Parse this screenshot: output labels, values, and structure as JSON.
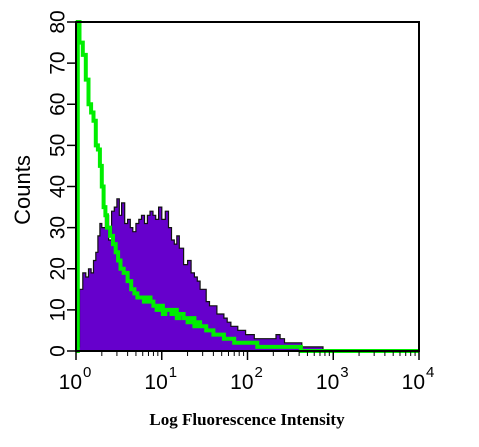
{
  "chart_data": {
    "type": "area",
    "xlabel": "Log Fluorescence Intensity",
    "ylabel": "Counts",
    "x_scale": "log",
    "xlim": [
      1,
      10000
    ],
    "ylim": [
      0,
      80
    ],
    "grid": false,
    "y_ticks": [
      "0",
      "10",
      "20",
      "30",
      "40",
      "50",
      "60",
      "70",
      "80"
    ],
    "x_ticks": [
      {
        "base": "10",
        "exp": "0",
        "value": 1
      },
      {
        "base": "10",
        "exp": "1",
        "value": 10
      },
      {
        "base": "10",
        "exp": "2",
        "value": 100
      },
      {
        "base": "10",
        "exp": "3",
        "value": 1000
      },
      {
        "base": "10",
        "exp": "4",
        "value": 10000
      }
    ],
    "series": [
      {
        "style": "filled",
        "color": "#6600cc",
        "x": [
          1.0,
          1.1,
          1.2,
          1.3,
          1.4,
          1.5,
          1.6,
          1.7,
          1.8,
          1.9,
          2.0,
          2.2,
          2.4,
          2.6,
          2.8,
          3.0,
          3.2,
          3.4,
          3.7,
          4.0,
          4.3,
          4.6,
          5.0,
          5.4,
          5.8,
          6.3,
          6.8,
          7.3,
          7.9,
          8.5,
          9.2,
          10,
          11,
          12,
          13,
          14,
          15,
          16,
          18,
          20,
          22,
          24,
          26,
          28,
          30,
          33,
          36,
          40,
          44,
          48,
          53,
          58,
          64,
          70,
          77,
          85,
          95,
          105,
          120,
          135,
          150,
          170,
          190,
          215,
          240,
          270,
          300,
          340,
          380,
          430,
          480,
          540,
          600,
          680,
          760,
          850,
          1000,
          1500,
          2500,
          10000
        ],
        "y": [
          1,
          15,
          19,
          18,
          20,
          19,
          22,
          24,
          28,
          31,
          30,
          33,
          27,
          34,
          35,
          37,
          33,
          36,
          31,
          32,
          30,
          29,
          31,
          32,
          33,
          31,
          33,
          34,
          33,
          32,
          35,
          32,
          34,
          30,
          27,
          26,
          28,
          25,
          21,
          22,
          19,
          18,
          17,
          15,
          15,
          12,
          11,
          11,
          9,
          9,
          8,
          7,
          6,
          6,
          5,
          5,
          4,
          4,
          3,
          3,
          3,
          3,
          3,
          4,
          3,
          2,
          2,
          2,
          2,
          1,
          1,
          1,
          1,
          1,
          0,
          0,
          0,
          0,
          0,
          0
        ]
      },
      {
        "style": "line",
        "color": "#00ee00",
        "x": [
          1.0,
          1.05,
          1.1,
          1.2,
          1.3,
          1.4,
          1.5,
          1.6,
          1.7,
          1.8,
          1.9,
          2.0,
          2.1,
          2.2,
          2.3,
          2.5,
          2.7,
          2.9,
          3.1,
          3.3,
          3.6,
          4.0,
          4.4,
          4.8,
          5.2,
          5.7,
          6.2,
          6.8,
          7.4,
          8.0,
          8.7,
          9.5,
          10.3,
          11,
          12,
          13,
          14,
          15,
          16,
          18,
          20,
          22,
          24,
          26,
          28,
          30,
          33,
          36,
          40,
          44,
          48,
          53,
          58,
          64,
          70,
          80,
          90,
          100,
          115,
          130,
          150,
          170,
          200,
          230,
          260,
          300,
          350,
          420,
          500,
          600,
          700,
          1000,
          3000,
          10000
        ],
        "y": [
          0,
          80,
          75,
          72,
          66,
          60,
          58,
          56,
          50,
          49,
          45,
          40,
          35,
          33,
          30,
          28,
          26,
          24,
          22,
          20,
          19,
          17,
          15,
          14,
          13,
          13,
          12,
          13,
          12,
          11,
          10,
          11,
          9,
          10,
          10,
          9,
          10,
          8,
          9,
          8,
          7,
          8,
          6,
          7,
          6,
          6,
          5,
          5,
          4,
          4,
          4,
          3,
          3,
          3,
          2,
          2,
          2,
          2,
          2,
          1,
          1,
          1,
          1,
          1,
          1,
          1,
          1,
          0,
          0,
          0,
          0,
          0,
          0,
          0
        ]
      }
    ]
  }
}
